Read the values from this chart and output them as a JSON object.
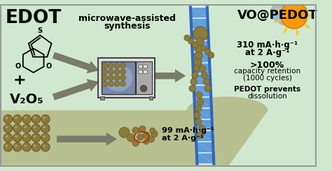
{
  "bg_main": "#d0e8d0",
  "bg_bottom": "#b8c090",
  "bg_right_panel": "#d0e8d0",
  "olive": "#8B7B3A",
  "olive_dark": "#6B5B2A",
  "arrow_gray": "#7a7a6a",
  "ladder_blue": "#5599dd",
  "ladder_dark": "#3366bb",
  "ladder_light": "#88bbff",
  "sun_orange": "#FF9900",
  "cloud_blue": "#99bbdd",
  "mw_body": "#cccccc",
  "mw_dark": "#666666",
  "mw_window_bg": "#8899aa",
  "mw_panel": "#999999",
  "red_arc": "#cc2200",
  "title_left": "EDOT",
  "title_right": "VO@PEDOT",
  "center_text_line1": "microwave-assisted",
  "center_text_line2": "synthesis",
  "right_text1_line1": "310 mA·h·g⁻¹",
  "right_text1_line2": "at 2 A·g⁻¹",
  "right_text2_line1": ">100%",
  "right_text2_line2": "capacity retention",
  "right_text2_line3": "(1000 cycles)",
  "right_text3_line1": "PEDOT prevents",
  "right_text3_line2": "dissolution",
  "bottom_text_line1": "99 mA·h·g⁻¹",
  "bottom_text_line2": "at 2 A·g⁻¹",
  "plus": "+",
  "v2o5": "V₂O₅"
}
